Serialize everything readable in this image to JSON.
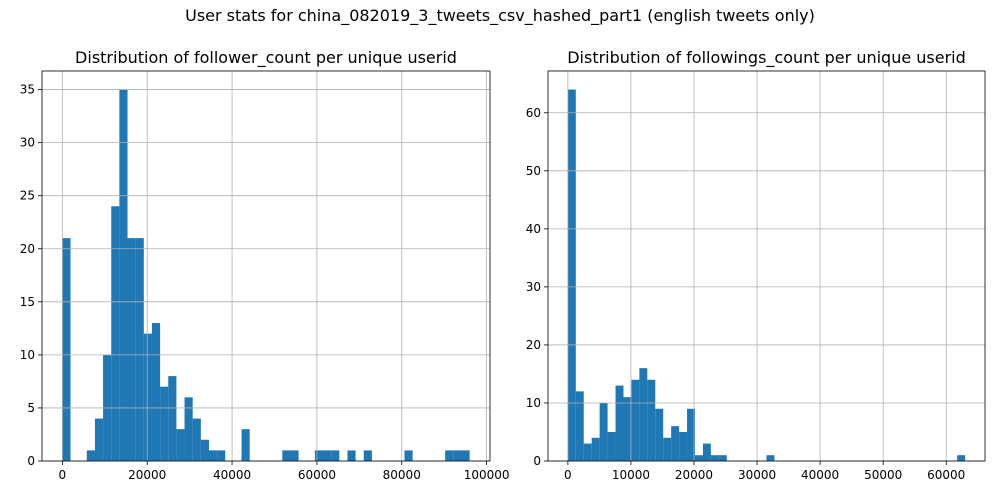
{
  "figure": {
    "title": "User stats for china_082019_3_tweets_csv_hashed_part1 (english tweets only)"
  },
  "chart_data": [
    {
      "type": "bar",
      "title": "Distribution of follower_count per unique userid",
      "xlabel": "",
      "ylabel": "",
      "xlim": [
        -4800,
        100800
      ],
      "ylim": [
        0,
        36.75
      ],
      "xticks": [
        0,
        20000,
        40000,
        60000,
        80000,
        100000
      ],
      "yticks": [
        0,
        5,
        10,
        15,
        20,
        25,
        30,
        35
      ],
      "grid": true,
      "bin_width": 1920,
      "bin_start": 0,
      "color": "#1f77b4",
      "values": [
        21,
        0,
        0,
        1,
        4,
        10,
        24,
        35,
        21,
        21,
        12,
        13,
        7,
        8,
        3,
        6,
        4,
        2,
        1,
        1,
        0,
        0,
        3,
        0,
        0,
        0,
        0,
        1,
        1,
        0,
        0,
        1,
        1,
        1,
        0,
        1,
        0,
        1,
        0,
        0,
        0,
        0,
        1,
        0,
        0,
        0,
        0,
        1,
        1,
        1
      ]
    },
    {
      "type": "bar",
      "title": "Distribution of followings_count per unique userid",
      "xlabel": "",
      "ylabel": "",
      "xlim": [
        -3150,
        66150
      ],
      "ylim": [
        0,
        67.2
      ],
      "xticks": [
        0,
        10000,
        20000,
        30000,
        40000,
        50000,
        60000
      ],
      "yticks": [
        0,
        10,
        20,
        30,
        40,
        50,
        60
      ],
      "grid": true,
      "bin_width": 1260,
      "bin_start": 0,
      "color": "#1f77b4",
      "values": [
        64,
        12,
        3,
        4,
        10,
        5,
        13,
        11,
        14,
        16,
        14,
        9,
        4,
        6,
        5,
        9,
        1,
        3,
        1,
        1,
        0,
        0,
        0,
        0,
        0,
        1,
        0,
        0,
        0,
        0,
        0,
        0,
        0,
        0,
        0,
        0,
        0,
        0,
        0,
        0,
        0,
        0,
        0,
        0,
        0,
        0,
        0,
        0,
        0,
        1
      ]
    }
  ]
}
